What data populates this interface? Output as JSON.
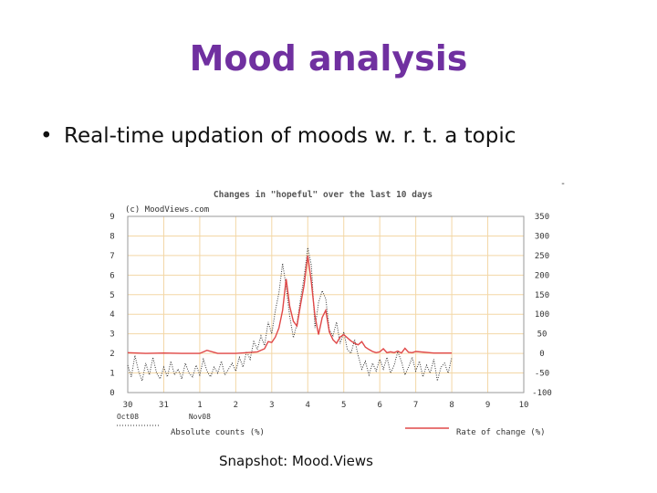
{
  "slide": {
    "title": "Mood analysis",
    "bullet_marker": "•",
    "bullet": "Real-time updation of moods w. r. t. a topic",
    "caption": "Snapshot: Mood.Views",
    "stray_mark": "-"
  },
  "chart_data": {
    "type": "line",
    "title": "Changes in \"hopeful\" over the last 10 days",
    "subtitle": "(c) MoodViews.com",
    "x_ticks": [
      "30",
      "31",
      "1",
      "2",
      "3",
      "4",
      "5",
      "6",
      "7",
      "8",
      "9",
      "10"
    ],
    "x_subticks": [
      {
        "at": "30",
        "label": "Oct08"
      },
      {
        "at": "1",
        "label": "Nov08"
      }
    ],
    "xlim": [
      0,
      11
    ],
    "y_left_ticks": [
      "0",
      "1",
      "2",
      "3",
      "4",
      "5",
      "6",
      "7",
      "8",
      "9"
    ],
    "ylim_left": [
      0,
      9
    ],
    "y_right_ticks": [
      "-100",
      "-50",
      "0",
      "50",
      "100",
      "150",
      "200",
      "250",
      "300",
      "350"
    ],
    "ylim_right": [
      -100,
      350
    ],
    "grid": true,
    "legend_position": "bottom",
    "colors": {
      "grid": "#f3d7a6",
      "frame": "#999999",
      "rate": "#e04848",
      "absolute": "#333333",
      "title": "#555555"
    },
    "series": [
      {
        "name": "Absolute counts (%)",
        "axis": "left",
        "style": "dotted",
        "x": [
          0,
          0.1,
          0.2,
          0.3,
          0.4,
          0.5,
          0.6,
          0.7,
          0.8,
          0.9,
          1.0,
          1.1,
          1.2,
          1.3,
          1.4,
          1.5,
          1.6,
          1.7,
          1.8,
          1.9,
          2.0,
          2.1,
          2.2,
          2.3,
          2.4,
          2.5,
          2.6,
          2.7,
          2.8,
          2.9,
          3.0,
          3.1,
          3.2,
          3.3,
          3.4,
          3.5,
          3.6,
          3.7,
          3.8,
          3.9,
          4.0,
          4.1,
          4.2,
          4.3,
          4.4,
          4.5,
          4.6,
          4.7,
          4.8,
          4.9,
          5.0,
          5.1,
          5.2,
          5.3,
          5.4,
          5.5,
          5.6,
          5.7,
          5.8,
          5.9,
          6.0,
          6.1,
          6.2,
          6.3,
          6.4,
          6.5,
          6.6,
          6.7,
          6.8,
          6.9,
          7.0,
          7.1,
          7.2,
          7.3,
          7.4,
          7.5,
          7.6,
          7.7,
          7.8,
          7.9,
          8.0,
          8.1,
          8.2,
          8.3,
          8.4,
          8.5,
          8.6,
          8.7,
          8.8,
          8.9,
          9.0
        ],
        "values": [
          1.4,
          0.8,
          1.9,
          1.1,
          0.6,
          1.5,
          0.9,
          1.8,
          1.0,
          0.7,
          1.3,
          0.8,
          1.6,
          0.9,
          1.2,
          0.7,
          1.5,
          1.0,
          0.8,
          1.4,
          0.9,
          1.7,
          1.1,
          0.8,
          1.3,
          1.0,
          1.6,
          0.9,
          1.2,
          1.5,
          1.1,
          1.8,
          1.3,
          2.1,
          1.7,
          2.6,
          2.2,
          2.9,
          2.4,
          3.6,
          3.0,
          4.2,
          5.1,
          6.6,
          5.4,
          3.9,
          2.8,
          3.5,
          4.8,
          5.9,
          7.4,
          6.5,
          3.3,
          4.6,
          5.2,
          4.8,
          3.2,
          2.9,
          3.6,
          2.5,
          3.1,
          2.2,
          2.0,
          2.7,
          1.9,
          1.2,
          1.6,
          0.9,
          1.5,
          1.1,
          1.7,
          1.2,
          1.8,
          1.0,
          1.4,
          2.1,
          1.6,
          0.9,
          1.3,
          1.8,
          1.1,
          1.6,
          0.8,
          1.4,
          1.0,
          1.7,
          0.6,
          1.3,
          1.5,
          1.0,
          1.8
        ]
      },
      {
        "name": "Rate of change (%)",
        "axis": "right",
        "style": "solid",
        "x": [
          0,
          0.5,
          1.0,
          1.5,
          2.0,
          2.2,
          2.5,
          3.0,
          3.3,
          3.6,
          3.8,
          3.9,
          4.0,
          4.1,
          4.2,
          4.3,
          4.4,
          4.5,
          4.6,
          4.7,
          4.8,
          4.9,
          5.0,
          5.1,
          5.2,
          5.3,
          5.4,
          5.5,
          5.6,
          5.7,
          5.8,
          5.9,
          6.0,
          6.1,
          6.2,
          6.3,
          6.4,
          6.5,
          6.6,
          6.7,
          6.8,
          6.9,
          7.0,
          7.1,
          7.2,
          7.3,
          7.4,
          7.5,
          7.6,
          7.7,
          7.8,
          7.9,
          8.0,
          8.5,
          9.0
        ],
        "values": [
          2,
          0,
          1,
          0,
          0,
          8,
          0,
          0,
          2,
          4,
          12,
          30,
          28,
          42,
          65,
          110,
          190,
          120,
          82,
          70,
          125,
          175,
          250,
          182,
          95,
          48,
          92,
          110,
          55,
          35,
          26,
          42,
          48,
          40,
          32,
          26,
          22,
          30,
          16,
          10,
          5,
          2,
          4,
          12,
          2,
          4,
          2,
          6,
          1,
          13,
          3,
          2,
          5,
          1,
          1
        ]
      }
    ]
  }
}
